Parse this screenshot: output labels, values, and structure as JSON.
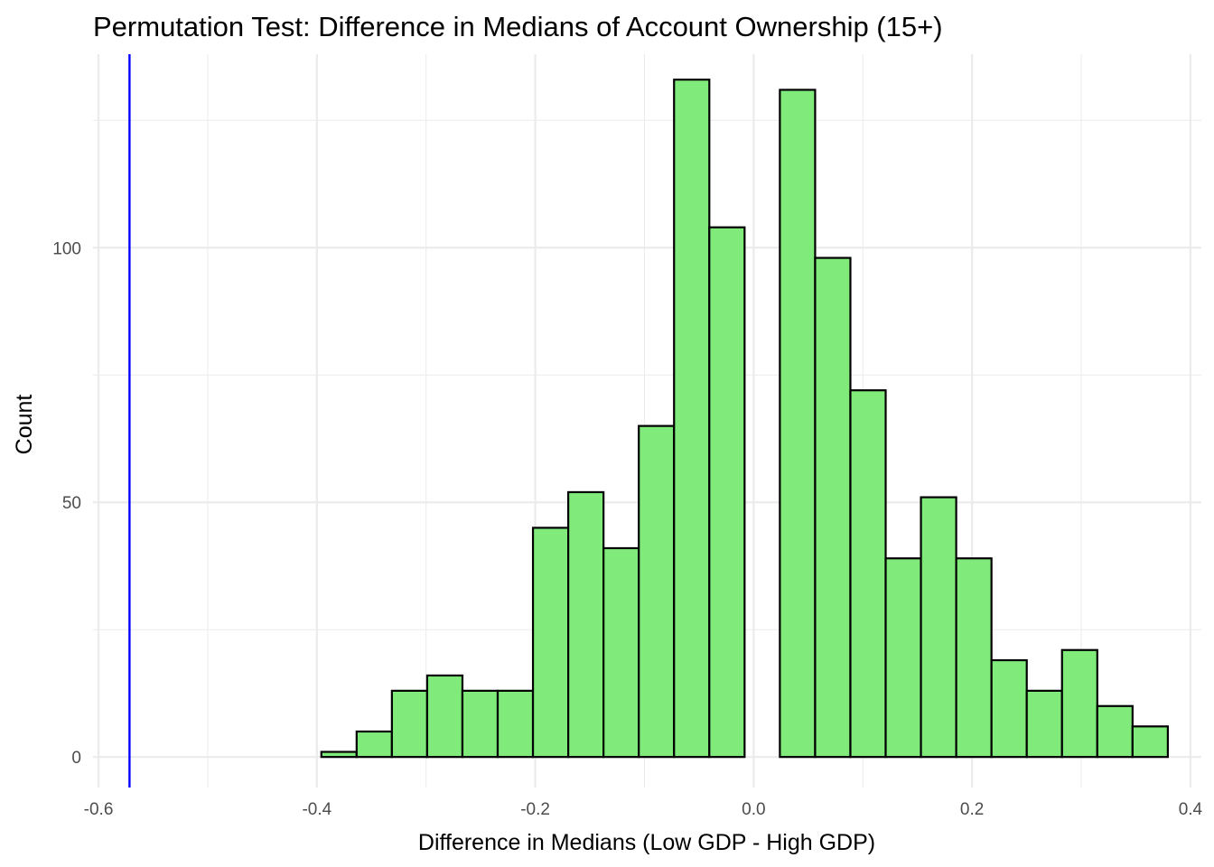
{
  "chart_data": {
    "type": "bar",
    "title": "Permutation Test: Difference in Medians of Account Ownership (15+)",
    "xlabel": "Difference in Medians (Low GDP - High GDP)",
    "ylabel": "Count",
    "xlim": [
      -0.605,
      0.41
    ],
    "ylim": [
      -6,
      138
    ],
    "x_ticks": [
      -0.6,
      -0.4,
      -0.2,
      0.0,
      0.2,
      0.4
    ],
    "x_tick_labels": [
      "-0.6",
      "-0.4",
      "-0.2",
      "0.0",
      "0.2",
      "0.4"
    ],
    "y_ticks": [
      0,
      50,
      100
    ],
    "y_tick_labels": [
      "0",
      "50",
      "100"
    ],
    "grid": true,
    "bin_width": 0.0323,
    "bins": [
      {
        "x0": -0.5897,
        "x1": -0.5574,
        "count": 0
      },
      {
        "x0": -0.5574,
        "x1": -0.5251,
        "count": 0
      },
      {
        "x0": -0.5251,
        "x1": -0.4928,
        "count": 0
      },
      {
        "x0": -0.4928,
        "x1": -0.4605,
        "count": 0
      },
      {
        "x0": -0.4605,
        "x1": -0.4282,
        "count": 0
      },
      {
        "x0": -0.4282,
        "x1": -0.3959,
        "count": 0
      },
      {
        "x0": -0.3959,
        "x1": -0.3636,
        "count": 1
      },
      {
        "x0": -0.3636,
        "x1": -0.3313,
        "count": 5
      },
      {
        "x0": -0.3313,
        "x1": -0.299,
        "count": 13
      },
      {
        "x0": -0.299,
        "x1": -0.2667,
        "count": 16
      },
      {
        "x0": -0.2667,
        "x1": -0.2344,
        "count": 13
      },
      {
        "x0": -0.2344,
        "x1": -0.2021,
        "count": 13
      },
      {
        "x0": -0.2021,
        "x1": -0.1698,
        "count": 45
      },
      {
        "x0": -0.1698,
        "x1": -0.1375,
        "count": 52
      },
      {
        "x0": -0.1375,
        "x1": -0.1052,
        "count": 41
      },
      {
        "x0": -0.1052,
        "x1": -0.0729,
        "count": 65
      },
      {
        "x0": -0.0729,
        "x1": -0.0406,
        "count": 133
      },
      {
        "x0": -0.0406,
        "x1": -0.0083,
        "count": 104
      },
      {
        "x0": -0.0083,
        "x1": 0.024,
        "count": 0
      },
      {
        "x0": 0.024,
        "x1": 0.0563,
        "count": 131
      },
      {
        "x0": 0.0563,
        "x1": 0.0886,
        "count": 98
      },
      {
        "x0": 0.0886,
        "x1": 0.1209,
        "count": 72
      },
      {
        "x0": 0.1209,
        "x1": 0.1532,
        "count": 39
      },
      {
        "x0": 0.1532,
        "x1": 0.1855,
        "count": 51
      },
      {
        "x0": 0.1855,
        "x1": 0.2178,
        "count": 39
      },
      {
        "x0": 0.2178,
        "x1": 0.2501,
        "count": 19
      },
      {
        "x0": 0.2501,
        "x1": 0.2824,
        "count": 13
      },
      {
        "x0": 0.2824,
        "x1": 0.3147,
        "count": 21
      },
      {
        "x0": 0.3147,
        "x1": 0.347,
        "count": 10
      },
      {
        "x0": 0.347,
        "x1": 0.3793,
        "count": 6
      }
    ],
    "observed_line": {
      "x": -0.5716,
      "color": "#0000ff"
    },
    "colors": {
      "fill": "#80eb7b",
      "stroke": "#000000",
      "grid": "#ebebeb",
      "background": "#ffffff"
    }
  }
}
